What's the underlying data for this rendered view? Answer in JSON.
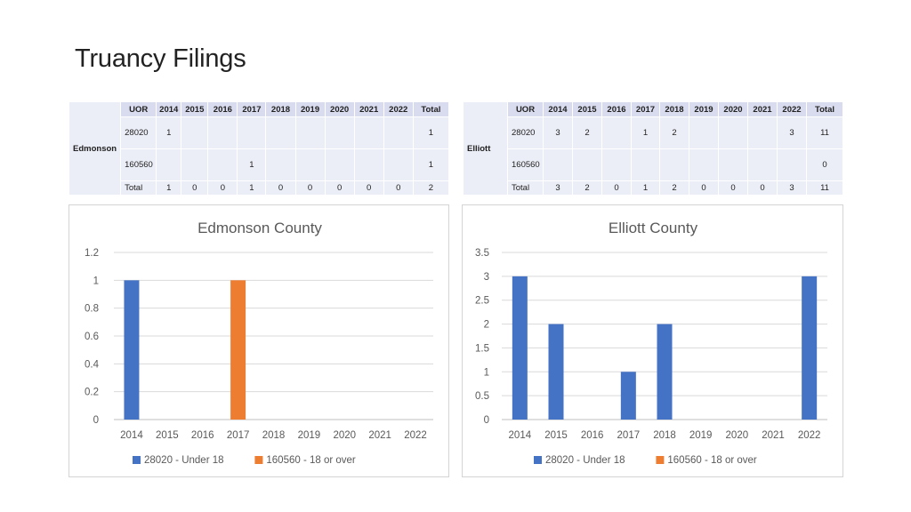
{
  "page": {
    "title": "Truancy Filings"
  },
  "tables": [
    {
      "county": "Edmonson",
      "headers": [
        "UOR",
        "2014",
        "2015",
        "2016",
        "2017",
        "2018",
        "2019",
        "2020",
        "2021",
        "2022",
        "Total"
      ],
      "rows": [
        {
          "uor": "28020",
          "cells": [
            "1",
            "",
            "",
            "",
            "",
            "",
            "",
            "",
            ""
          ],
          "total": "1"
        },
        {
          "uor": "160560",
          "cells": [
            "",
            "",
            "",
            "1",
            "",
            "",
            "",
            "",
            ""
          ],
          "total": "1"
        }
      ],
      "total_row": {
        "label": "Total",
        "cells": [
          "1",
          "0",
          "0",
          "1",
          "0",
          "0",
          "0",
          "0",
          "0"
        ],
        "total": "2"
      }
    },
    {
      "county": "Elliott",
      "headers": [
        "UOR",
        "2014",
        "2015",
        "2016",
        "2017",
        "2018",
        "2019",
        "2020",
        "2021",
        "2022",
        "Total"
      ],
      "rows": [
        {
          "uor": "28020",
          "cells": [
            "3",
            "2",
            "",
            "1",
            "2",
            "",
            "",
            "",
            "3"
          ],
          "total": "11"
        },
        {
          "uor": "160560",
          "cells": [
            "",
            "",
            "",
            "",
            "",
            "",
            "",
            "",
            ""
          ],
          "total": "0"
        }
      ],
      "total_row": {
        "label": "Total",
        "cells": [
          "3",
          "2",
          "0",
          "1",
          "2",
          "0",
          "0",
          "0",
          "3"
        ],
        "total": "11"
      }
    }
  ],
  "chart_data": [
    {
      "type": "bar",
      "title": "Edmonson County",
      "categories": [
        "2014",
        "2015",
        "2016",
        "2017",
        "2018",
        "2019",
        "2020",
        "2021",
        "2022"
      ],
      "series": [
        {
          "name": "28020 - Under 18",
          "color": "#4472c4",
          "values": [
            1,
            0,
            0,
            0,
            0,
            0,
            0,
            0,
            0
          ]
        },
        {
          "name": "160560 - 18 or over",
          "color": "#ed7d31",
          "values": [
            0,
            0,
            0,
            1,
            0,
            0,
            0,
            0,
            0
          ]
        }
      ],
      "ylim": [
        0,
        1.2
      ],
      "yticks": [
        "0",
        "0.2",
        "0.4",
        "0.6",
        "0.8",
        "1",
        "1.2"
      ],
      "grid": true,
      "legend": "bottom"
    },
    {
      "type": "bar",
      "title": "Elliott County",
      "categories": [
        "2014",
        "2015",
        "2016",
        "2017",
        "2018",
        "2019",
        "2020",
        "2021",
        "2022"
      ],
      "series": [
        {
          "name": "28020 - Under 18",
          "color": "#4472c4",
          "values": [
            3,
            2,
            0,
            1,
            2,
            0,
            0,
            0,
            3
          ]
        },
        {
          "name": "160560 - 18 or over",
          "color": "#ed7d31",
          "values": [
            0,
            0,
            0,
            0,
            0,
            0,
            0,
            0,
            0
          ]
        }
      ],
      "ylim": [
        0,
        3.5
      ],
      "yticks": [
        "0",
        "0.5",
        "1",
        "1.5",
        "2",
        "2.5",
        "3",
        "3.5"
      ],
      "grid": true,
      "legend": "bottom"
    }
  ]
}
